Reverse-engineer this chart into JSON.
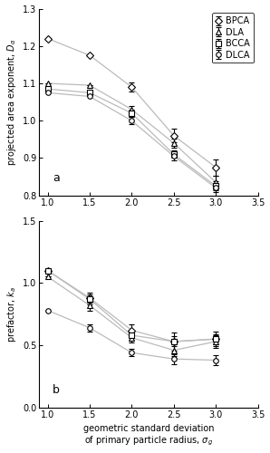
{
  "sigma_g": [
    1.0,
    1.5,
    2.0,
    2.5,
    3.0
  ],
  "Da": {
    "BPCA": [
      1.22,
      1.175,
      1.09,
      0.96,
      0.875
    ],
    "DLA": [
      1.1,
      1.095,
      1.03,
      0.94,
      0.835
    ],
    "BCCA": [
      1.085,
      1.075,
      1.02,
      0.91,
      0.825
    ],
    "DLCA": [
      1.075,
      1.065,
      1.0,
      0.905,
      0.82
    ]
  },
  "Da_err": {
    "BPCA": [
      0.0,
      0.0,
      0.012,
      0.018,
      0.022
    ],
    "DLA": [
      0.0,
      0.0,
      0.01,
      0.012,
      0.018
    ],
    "BCCA": [
      0.0,
      0.0,
      0.01,
      0.01,
      0.012
    ],
    "DLCA": [
      0.0,
      0.0,
      0.01,
      0.01,
      0.012
    ]
  },
  "ka": {
    "BPCA": [
      1.1,
      0.88,
      0.62,
      0.53,
      0.55
    ],
    "DLA": [
      1.05,
      0.82,
      0.56,
      0.46,
      0.53
    ],
    "BCCA": [
      1.1,
      0.87,
      0.58,
      0.53,
      0.55
    ],
    "DLCA": [
      0.78,
      0.64,
      0.44,
      0.39,
      0.38
    ]
  },
  "ka_err": {
    "BPCA": [
      0.0,
      0.04,
      0.05,
      0.07,
      0.06
    ],
    "DLA": [
      0.0,
      0.04,
      0.04,
      0.05,
      0.05
    ],
    "BCCA": [
      0.0,
      0.04,
      0.04,
      0.04,
      0.04
    ],
    "DLCA": [
      0.0,
      0.03,
      0.03,
      0.04,
      0.04
    ]
  },
  "markers": {
    "BPCA": "D",
    "DLA": "^",
    "BCCA": "s",
    "DLCA": "o"
  },
  "line_color": "#bbbbbb",
  "marker_size": 4,
  "Da_ylim": [
    0.8,
    1.3
  ],
  "Da_yticks": [
    0.8,
    0.9,
    1.0,
    1.1,
    1.2,
    1.3
  ],
  "ka_ylim": [
    0.0,
    1.5
  ],
  "ka_yticks": [
    0.0,
    0.5,
    1.0,
    1.5
  ],
  "xlim": [
    0.9,
    3.5
  ],
  "xticks": [
    1.0,
    1.5,
    2.0,
    2.5,
    3.0,
    3.5
  ],
  "xticklabels": [
    "1.0",
    "1.5",
    "2.0",
    "2.5",
    "3.0",
    "3.5"
  ],
  "xlabel": "geometric standard deviation\nof primary particle radius, $\\sigma_g$",
  "ylabel_a": "projected area exponent, $D_\\alpha$",
  "ylabel_b": "prefactor, $k_a$",
  "legend_order": [
    "BPCA",
    "DLA",
    "BCCA",
    "DLCA"
  ],
  "panel_a_label": "a",
  "panel_b_label": "b",
  "tick_fontsize": 7,
  "label_fontsize": 7,
  "legend_fontsize": 7
}
